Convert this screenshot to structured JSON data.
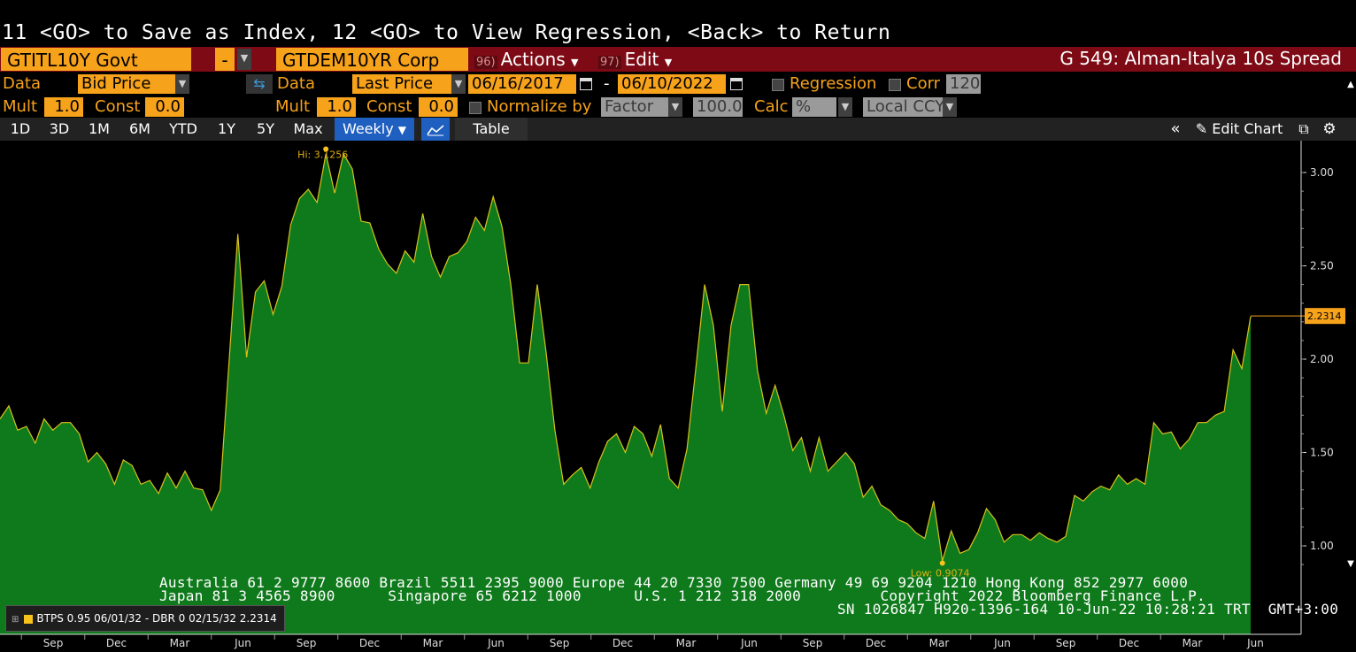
{
  "command_line": "11 <GO> to Save as Index, 12 <GO> to View Regression, <Back> to Return",
  "header": {
    "security1": "GTITL10Y Govt",
    "op": "-",
    "security2": "GTDEM10YR Corp",
    "actions_num": "96)",
    "actions_label": "Actions",
    "edit_num": "97)",
    "edit_label": "Edit",
    "title": "G 549: Alman-Italya 10s Spread"
  },
  "row1": {
    "data_label": "Data",
    "data1_value": "Bid Price",
    "data2_label": "Data",
    "data2_value": "Last Price",
    "start_date": "06/16/2017",
    "dash": "-",
    "end_date": "06/10/2022",
    "regression_label": "Regression",
    "corr_label": "Corr",
    "corr_value": "120"
  },
  "row2": {
    "mult_label": "Mult",
    "mult1": "1.0",
    "const_label": "Const",
    "const1": "0.0",
    "mult2_label": "Mult",
    "mult2": "1.0",
    "const2_label": "Const",
    "const2": "0.0",
    "normalize_label": "Normalize by",
    "normalize_value": "Factor",
    "factor_value": "100.0",
    "calc_label": "Calc",
    "calc_value": "%",
    "ccy_value": "Local CCY"
  },
  "toolbar": {
    "periods": [
      "1D",
      "3D",
      "1M",
      "6M",
      "YTD",
      "1Y",
      "5Y",
      "Max"
    ],
    "frequency": "Weekly",
    "table_label": "Table",
    "edit_chart_label": "Edit Chart"
  },
  "contacts": {
    "line1": "Australia 61 2 9777 8600 Brazil 5511 2395 9000 Europe 44 20 7330 7500 Germany 49 69 9204 1210 Hong Kong 852 2977 6000",
    "line2": "Japan 81 3 4565 8900      Singapore 65 6212 1000      U.S. 1 212 318 2000         Copyright 2022 Bloomberg Finance L.P.",
    "line3": "SN 1026847 H920-1396-164 10-Jun-22 10:28:21 TRT  GMT+3:00"
  },
  "legend": {
    "label": "BTPS 0.95 06/01/32 - DBR 0 02/15/32 2.2314",
    "color": "#f7c21b"
  },
  "colors": {
    "area_fill": "#0f7a1c",
    "line": "#d7c21b",
    "accent": "#f7a21b",
    "header_bg": "#7d0a14"
  },
  "chart_data": {
    "type": "area",
    "x_start": "2017-06-16",
    "x_end": "2022-06-10",
    "ylim": [
      0.85,
      3.15
    ],
    "yticks": [
      "3.00",
      "2.50",
      "2.00",
      "1.50",
      "1.00"
    ],
    "xticks": [
      "Sep",
      "Dec",
      "Mar",
      "Jun",
      "Sep",
      "Dec",
      "Mar",
      "Jun",
      "Sep",
      "Dec",
      "Mar",
      "Jun",
      "Sep",
      "Dec",
      "Mar",
      "Jun",
      "Sep",
      "Dec",
      "Mar",
      "Jun"
    ],
    "hi_label": "Hi: 3.1256",
    "low_label": "Low: 0.9074",
    "last_label": "2.2314",
    "hi": 3.1256,
    "low": 0.9074,
    "last": 2.2314,
    "values": [
      1.68,
      1.75,
      1.62,
      1.64,
      1.55,
      1.68,
      1.62,
      1.66,
      1.66,
      1.6,
      1.45,
      1.5,
      1.44,
      1.33,
      1.46,
      1.43,
      1.33,
      1.35,
      1.28,
      1.39,
      1.31,
      1.4,
      1.31,
      1.3,
      1.19,
      1.3,
      1.98,
      2.67,
      2.01,
      2.36,
      2.42,
      2.24,
      2.39,
      2.72,
      2.86,
      2.91,
      2.84,
      3.1,
      2.89,
      3.1,
      3.02,
      2.74,
      2.73,
      2.59,
      2.51,
      2.46,
      2.58,
      2.52,
      2.78,
      2.55,
      2.44,
      2.55,
      2.57,
      2.63,
      2.76,
      2.69,
      2.87,
      2.71,
      2.4,
      1.98,
      1.98,
      2.4,
      2.04,
      1.62,
      1.33,
      1.38,
      1.42,
      1.31,
      1.45,
      1.56,
      1.6,
      1.5,
      1.64,
      1.6,
      1.48,
      1.65,
      1.36,
      1.31,
      1.52,
      1.95,
      2.4,
      2.18,
      1.72,
      2.18,
      2.4,
      2.4,
      1.94,
      1.71,
      1.86,
      1.7,
      1.51,
      1.58,
      1.4,
      1.58,
      1.4,
      1.45,
      1.5,
      1.44,
      1.26,
      1.32,
      1.22,
      1.19,
      1.14,
      1.12,
      1.07,
      1.04,
      1.24,
      0.92,
      1.08,
      0.96,
      0.98,
      1.07,
      1.2,
      1.14,
      1.02,
      1.06,
      1.06,
      1.03,
      1.07,
      1.04,
      1.02,
      1.05,
      1.27,
      1.24,
      1.29,
      1.32,
      1.3,
      1.38,
      1.33,
      1.36,
      1.33,
      1.66,
      1.6,
      1.61,
      1.52,
      1.57,
      1.66,
      1.66,
      1.7,
      1.72,
      2.05,
      1.95,
      2.23
    ],
    "series": [
      {
        "name": "BTPS 0.95 06/01/32 - DBR 0 02/15/32"
      }
    ]
  }
}
